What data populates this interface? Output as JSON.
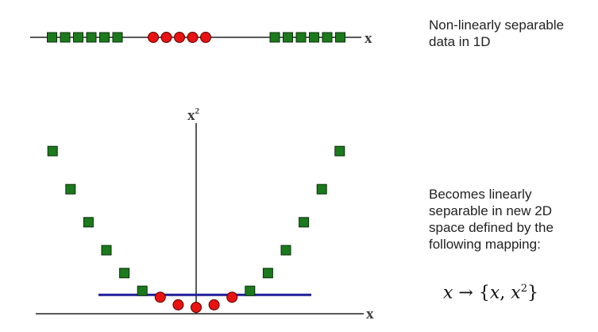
{
  "captions": {
    "top": "Non-linearly separable data in 1D",
    "bottom": "Becomes linearly separable in new 2D space defined by the following mapping:"
  },
  "axes": {
    "top_x_label": "x",
    "bottom_x_label": "x",
    "bottom_y_label": "x",
    "bottom_y_label_exponent": "2"
  },
  "formula": {
    "var": "x",
    "arrow": "→",
    "open": "{",
    "var2": "x",
    "sep": ", ",
    "var3": "x",
    "exp": "2",
    "close": "}"
  },
  "colors": {
    "square_fill": "#1b7a1b",
    "circle_fill": "#e81212",
    "separator_line": "#1f1f9a",
    "axis": "#222222"
  },
  "chart_data": {
    "type": "scatter",
    "one_d": {
      "squares": [
        -11,
        -10,
        -9,
        -8,
        -7,
        -6,
        6,
        7,
        8,
        9,
        10,
        11
      ],
      "circles": [
        -4,
        -3,
        -2,
        -1,
        0
      ]
    },
    "two_d": {
      "squares": [
        [
          -8,
          64
        ],
        [
          -7,
          49
        ],
        [
          -6,
          36
        ],
        [
          -5,
          25
        ],
        [
          -4,
          16
        ],
        [
          -3,
          9
        ],
        [
          3,
          9
        ],
        [
          4,
          16
        ],
        [
          5,
          25
        ],
        [
          6,
          36
        ],
        [
          7,
          49
        ],
        [
          8,
          64
        ]
      ],
      "circles": [
        [
          -2,
          4
        ],
        [
          -1,
          1
        ],
        [
          0,
          0
        ],
        [
          1,
          1
        ],
        [
          2,
          4
        ]
      ],
      "separator_y": 6.5
    }
  }
}
